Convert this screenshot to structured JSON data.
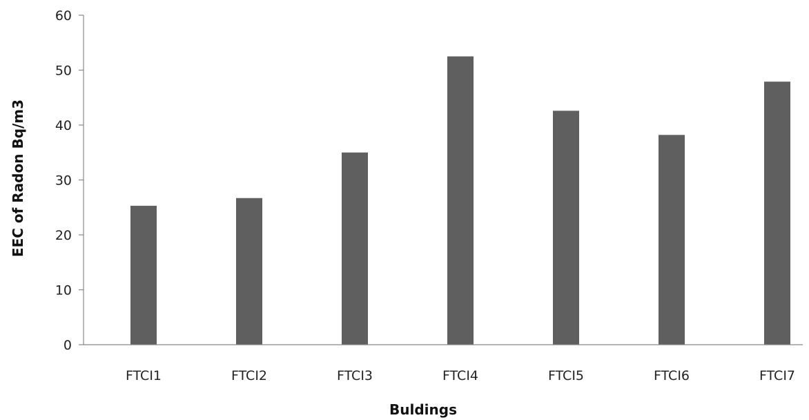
{
  "chart_data": {
    "type": "bar",
    "title": "",
    "xlabel": "Buldings",
    "ylabel": "EEC of Radon  Bq/m3",
    "categories": [
      "FTCI1",
      "FTCI2",
      "FTCI3",
      "FTCI4",
      "FTCI5",
      "FTCI6",
      "FTCI7"
    ],
    "values": [
      25.3,
      26.7,
      35.0,
      52.5,
      42.6,
      38.2,
      47.9
    ],
    "ylim": [
      0,
      60
    ],
    "yticks": [
      "0",
      "10",
      "20",
      "30",
      "40",
      "50",
      "60"
    ],
    "grid": false,
    "legend": "none",
    "bar_color": "#5f5f5f"
  }
}
